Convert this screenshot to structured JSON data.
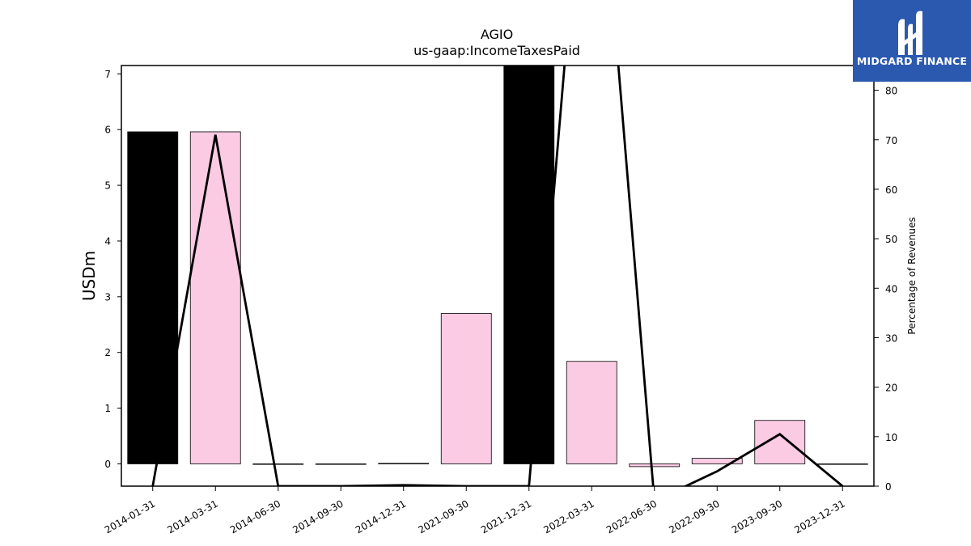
{
  "chart_data": {
    "type": "bar",
    "title": "AGIO",
    "subtitle": "us-gaap:IncomeTaxesPaid",
    "ylabel": "USDm",
    "y2label": "Percentage of Revenues",
    "categories": [
      "2014-01-31",
      "2014-03-31",
      "2014-06-30",
      "2014-09-30",
      "2014-12-31",
      "2021-09-30",
      "2021-12-31",
      "2022-03-31",
      "2022-06-30",
      "2022-09-30",
      "2023-09-30",
      "2023-12-31"
    ],
    "series": [
      {
        "type": "bar",
        "values": [
          5.96,
          5.96,
          -0.01,
          -0.01,
          0.01,
          2.7,
          7.6,
          1.84,
          -0.05,
          0.1,
          0.78,
          -0.01
        ],
        "colors": [
          "#000000",
          "#fbcbe4",
          "#fbcbe4",
          "#fbcbe4",
          "#fbcbe4",
          "#fbcbe4",
          "#000000",
          "#fbcbe4",
          "#fbcbe4",
          "#fbcbe4",
          "#fbcbe4",
          "#fbcbe4"
        ]
      },
      {
        "type": "line",
        "axis": "right",
        "values": [
          0,
          71,
          0,
          0,
          0.2,
          0,
          0,
          150,
          -3,
          3,
          10.5,
          0
        ]
      }
    ],
    "ylim": [
      -0.4,
      7.15
    ],
    "y2lim": [
      0,
      85
    ],
    "yticks": [
      0,
      1,
      2,
      3,
      4,
      5,
      6,
      7
    ],
    "y2ticks": [
      0,
      10,
      20,
      30,
      40,
      50,
      60,
      70,
      80
    ],
    "grid": false
  },
  "logo": {
    "text": "MIDGARD FINANCE",
    "color": "#2b59b0"
  }
}
